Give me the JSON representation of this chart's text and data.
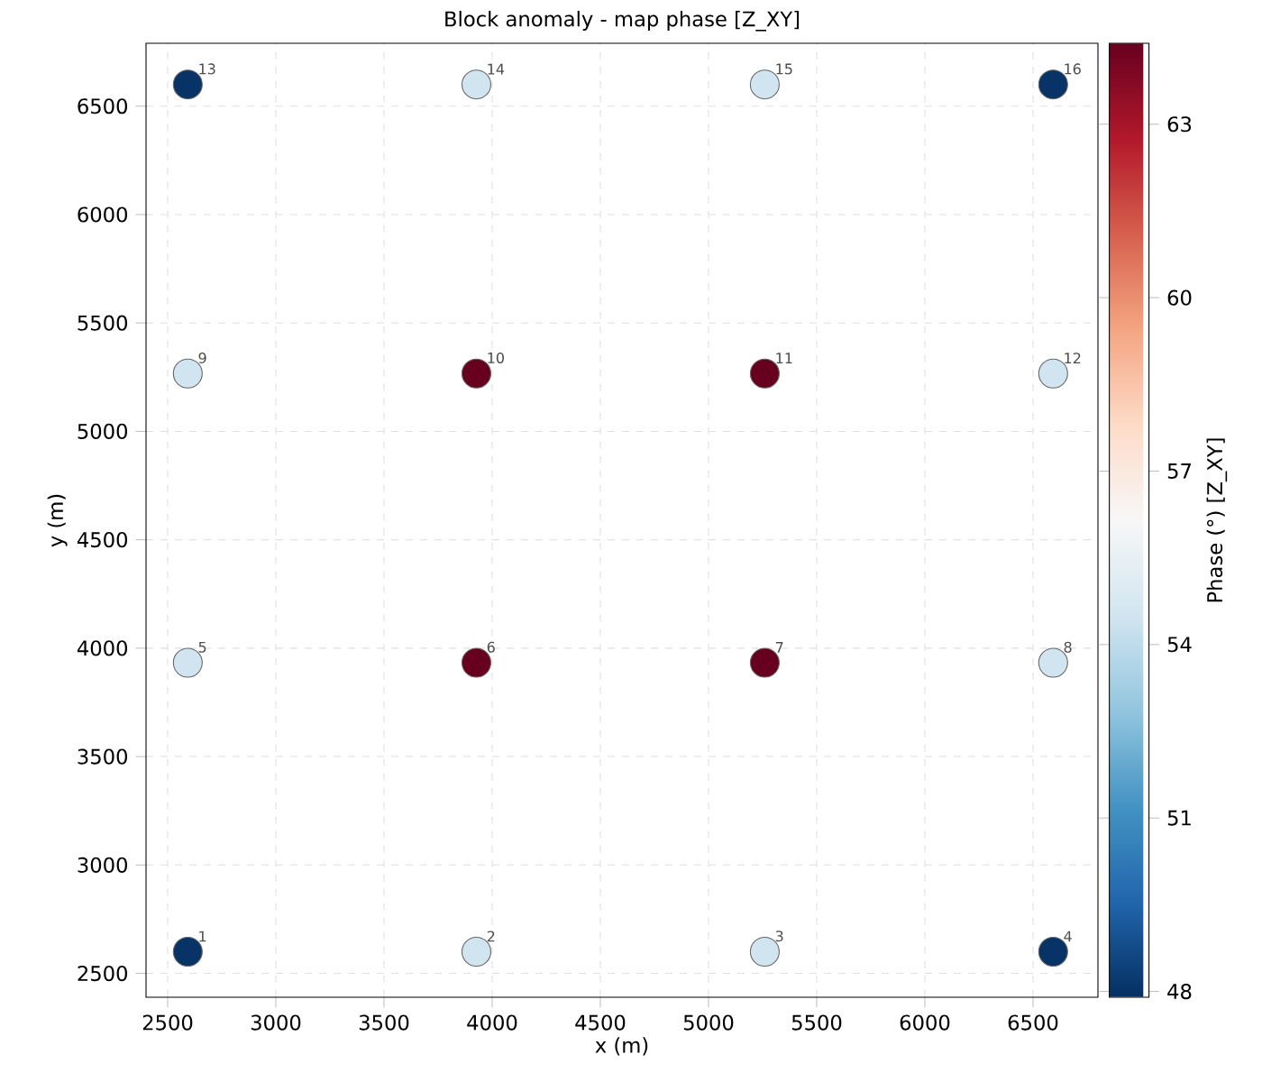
{
  "chart_data": {
    "type": "scatter",
    "title": "Block anomaly - map phase [Z_XY]",
    "xlabel": "x  (m)",
    "ylabel": "y  (m)",
    "clabel": "Phase (°)  [Z_XY]",
    "x": [
      2593,
      3927,
      5260,
      6593,
      2593,
      3927,
      5260,
      6593,
      2593,
      3927,
      5260,
      6593,
      2593,
      3927,
      5260,
      6593
    ],
    "values": [
      2600,
      2600,
      2600,
      2600,
      3933,
      3933,
      3933,
      3933,
      5267,
      5267,
      5267,
      5267,
      6600,
      6600,
      6600,
      6600
    ],
    "cvalues": [
      48,
      54.5,
      54.5,
      48,
      54.5,
      64.4,
      64.4,
      54.5,
      54.5,
      64.4,
      64.4,
      54.5,
      48,
      54.5,
      54.5,
      48
    ],
    "annotations": [
      {
        "text": "1",
        "x": 2593,
        "y": 2600
      },
      {
        "text": "2",
        "x": 3927,
        "y": 2600
      },
      {
        "text": "3",
        "x": 5260,
        "y": 2600
      },
      {
        "text": "4",
        "x": 6593,
        "y": 2600
      },
      {
        "text": "5",
        "x": 2593,
        "y": 3933
      },
      {
        "text": "6",
        "x": 3927,
        "y": 3933
      },
      {
        "text": "7",
        "x": 5260,
        "y": 3933
      },
      {
        "text": "8",
        "x": 6593,
        "y": 3933
      },
      {
        "text": "9",
        "x": 2593,
        "y": 5267
      },
      {
        "text": "10",
        "x": 3927,
        "y": 5267
      },
      {
        "text": "11",
        "x": 5260,
        "y": 5267
      },
      {
        "text": "12",
        "x": 6593,
        "y": 5267
      },
      {
        "text": "13",
        "x": 2593,
        "y": 6600
      },
      {
        "text": "14",
        "x": 3927,
        "y": 6600
      },
      {
        "text": "15",
        "x": 5260,
        "y": 6600
      },
      {
        "text": "16",
        "x": 6593,
        "y": 6600
      }
    ],
    "xlim": [
      2400,
      6800
    ],
    "ylim": [
      2390,
      6790
    ],
    "xticks": [
      2500,
      3000,
      3500,
      4000,
      4500,
      5000,
      5500,
      6000,
      6500
    ],
    "yticks": [
      2500,
      3000,
      3500,
      4000,
      4500,
      5000,
      5500,
      6000,
      6500
    ],
    "clim": [
      47.9,
      64.4
    ],
    "cticks": [
      48,
      51,
      54,
      57,
      60,
      63
    ],
    "grid": true,
    "marker": "circle"
  }
}
